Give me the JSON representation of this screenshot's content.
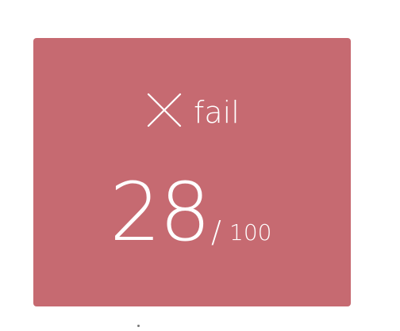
{
  "result": {
    "status": "fail",
    "score": "28",
    "slash": "/",
    "total": "100",
    "icon": "close-icon",
    "background_color": "#c66a71",
    "text_color": "#ffffff"
  }
}
